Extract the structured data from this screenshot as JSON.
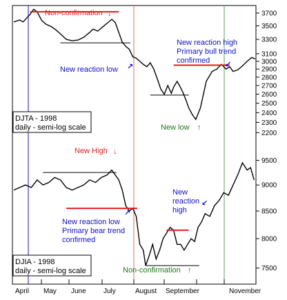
{
  "colors": {
    "annotation_red": "#e41a1c",
    "annotation_blue": "#1010c8",
    "annotation_green": "#1a7a1a",
    "april_line": "#1515d0",
    "august_line": "#e06a6a",
    "november_line": "#5aa05a",
    "price_line": "#000000"
  },
  "chart_data": [
    {
      "type": "line",
      "panel": "top",
      "box_title": "DJTA - 1998",
      "box_subtitle": "daily - semi-log scale",
      "y_scale": "log",
      "ylim": [
        2150,
        3800
      ],
      "y_ticks": [
        2200,
        2300,
        2400,
        2500,
        2600,
        2700,
        2800,
        2900,
        3000,
        3100,
        3300,
        3500,
        3700
      ],
      "x": [
        0,
        5,
        8,
        11,
        14,
        17,
        20,
        24,
        28,
        32,
        36,
        40,
        45,
        50,
        55,
        60,
        65,
        68,
        72,
        76,
        80,
        84,
        87,
        90,
        93,
        96,
        99,
        102,
        105,
        108,
        111,
        114,
        117,
        120,
        123,
        126,
        129,
        132,
        135,
        137,
        140,
        142,
        145,
        148,
        150,
        153,
        156,
        160,
        165,
        170,
        174,
        178,
        182,
        185,
        188,
        192,
        196,
        200,
        204,
        207
      ],
      "values": [
        3560,
        3590,
        3560,
        3620,
        3680,
        3760,
        3720,
        3580,
        3520,
        3490,
        3440,
        3380,
        3300,
        3280,
        3290,
        3330,
        3400,
        3450,
        3420,
        3480,
        3540,
        3600,
        3550,
        3400,
        3260,
        3200,
        3160,
        3060,
        3040,
        3000,
        2960,
        2930,
        2980,
        2900,
        2780,
        2660,
        2600,
        2700,
        2610,
        2680,
        2750,
        2700,
        2620,
        2520,
        2450,
        2380,
        2330,
        2450,
        2750,
        2870,
        2900,
        2960,
        2900,
        2930,
        2870,
        2890,
        2940,
        3000,
        3050,
        3030
      ],
      "annotations": {
        "non_confirmation": {
          "label": "Non-confirmation",
          "arrow": "↓",
          "level": 3720,
          "x_from": 14,
          "x_to": 90
        },
        "new_reaction_low": {
          "label": "New reaction low",
          "arrow": "↗",
          "level": 3250,
          "x_from": 40,
          "x_to": 100
        },
        "reaction_high": {
          "label_lines": [
            "New reaction high",
            "Primary bull trend",
            "confirmed"
          ],
          "arrow": "↙",
          "level": 2950,
          "x_from": 137,
          "x_to": 185
        },
        "new_low": {
          "label": "New low",
          "arrow": "↑",
          "level": 2590,
          "x_from": 117,
          "x_to": 150
        }
      }
    },
    {
      "type": "line",
      "panel": "bottom",
      "box_title": "DJIA - 1998",
      "box_subtitle": "daily - semi-log scale",
      "y_scale": "log",
      "ylim": [
        7350,
        9800
      ],
      "y_ticks": [
        7500,
        8000,
        8500,
        9000,
        9500
      ],
      "x": [
        0,
        5,
        10,
        15,
        20,
        25,
        30,
        35,
        40,
        45,
        50,
        55,
        60,
        65,
        70,
        75,
        80,
        84,
        87,
        90,
        93,
        96,
        99,
        102,
        105,
        108,
        111,
        113,
        116,
        119,
        122,
        125,
        128,
        131,
        134,
        137,
        140,
        143,
        146,
        149,
        152,
        155,
        158,
        161,
        164,
        168,
        172,
        176,
        180,
        184,
        188,
        192,
        196,
        200,
        203,
        206
      ],
      "values": [
        8900,
        8950,
        9000,
        8950,
        9100,
        9000,
        9050,
        9150,
        9100,
        8950,
        8900,
        8950,
        9000,
        9100,
        9050,
        9150,
        9200,
        9300,
        9200,
        9100,
        8900,
        8600,
        8500,
        8550,
        8400,
        7900,
        7800,
        7540,
        7700,
        7900,
        7650,
        7800,
        8000,
        8100,
        8200,
        8150,
        7900,
        7900,
        7800,
        7900,
        8000,
        7950,
        8200,
        8300,
        8450,
        8400,
        8600,
        8700,
        8850,
        8800,
        9000,
        9200,
        9450,
        9300,
        9350,
        9100
      ],
      "annotations": {
        "new_high": {
          "label": "New High",
          "arrow": "↓",
          "level": 9250,
          "x_from": 25,
          "x_to": 88
        },
        "new_reaction_low": {
          "label_lines": [
            "New reaction low",
            "Primary bear trend",
            "confirmed"
          ],
          "arrow": "↗",
          "level": 8550,
          "x_from": 45,
          "x_to": 106
        },
        "new_reaction_high": {
          "label_lines": [
            "New",
            "reaction",
            "high"
          ],
          "arrow": "↙",
          "level": 8150,
          "x_from": 131,
          "x_to": 150
        },
        "non_confirmation": {
          "label": "Non-confirmation",
          "arrow": "↑",
          "level": 7540,
          "x_from": 113,
          "x_to": 159
        }
      }
    }
  ],
  "months": [
    "April",
    "May",
    "June",
    "July",
    "August",
    "September",
    "November"
  ]
}
